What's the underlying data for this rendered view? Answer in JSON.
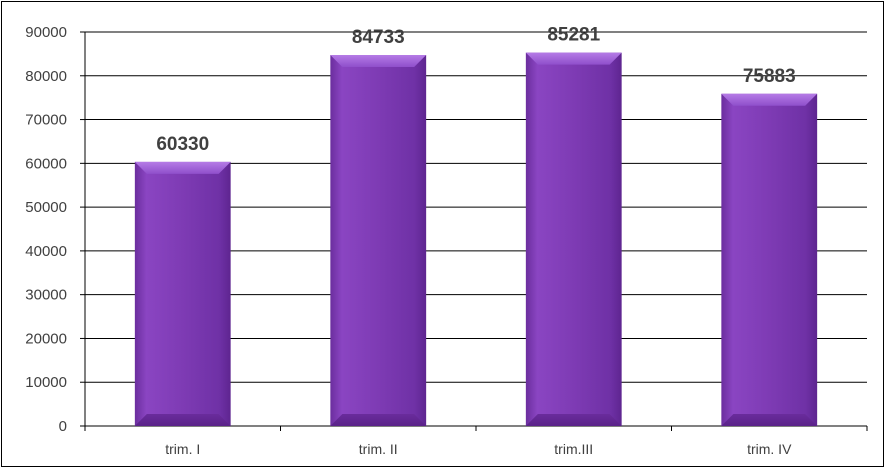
{
  "chart_data": {
    "type": "bar",
    "title": "",
    "xlabel": "",
    "ylabel": "",
    "categories": [
      "trim. I",
      "trim. II",
      "trim.III",
      "trim. IV"
    ],
    "values": [
      60330,
      84733,
      85281,
      75883
    ],
    "data_labels": [
      "60330",
      "84733",
      "85281",
      "75883"
    ],
    "ylim": [
      0,
      90000
    ],
    "yticks": [
      "0",
      "10000",
      "20000",
      "30000",
      "40000",
      "50000",
      "60000",
      "70000",
      "80000",
      "90000"
    ],
    "grid": true,
    "legend": "none",
    "bar_color": "#7E3BB4"
  }
}
